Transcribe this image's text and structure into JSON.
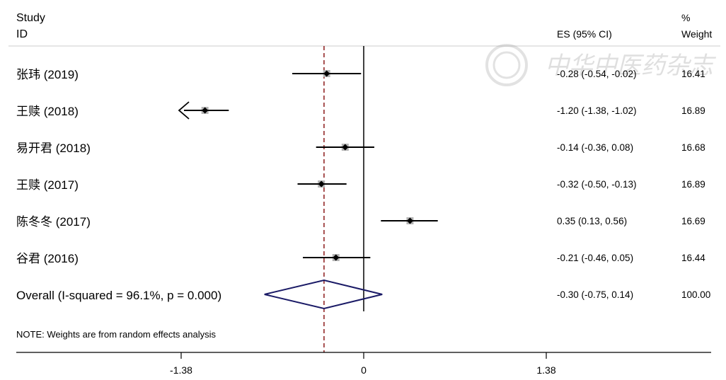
{
  "chart_data": {
    "type": "forest",
    "header": {
      "study_line1": "Study",
      "study_line2": "ID",
      "es_label": "ES (95% CI)",
      "weight_line1": "%",
      "weight_line2": "Weight"
    },
    "studies": [
      {
        "label": "张玮 (2019)",
        "es": -0.28,
        "lo": -0.54,
        "hi": -0.02,
        "es_text": "-0.28 (-0.54, -0.02)",
        "weight": 16.41,
        "weight_text": "16.41"
      },
      {
        "label": "王赎 (2018)",
        "es": -1.2,
        "lo": -1.38,
        "hi": -1.02,
        "es_text": "-1.20 (-1.38, -1.02)",
        "weight": 16.89,
        "weight_text": "16.89",
        "truncated_low": true
      },
      {
        "label": "易开君 (2018)",
        "es": -0.14,
        "lo": -0.36,
        "hi": 0.08,
        "es_text": "-0.14 (-0.36, 0.08)",
        "weight": 16.68,
        "weight_text": "16.68"
      },
      {
        "label": "王赎 (2017)",
        "es": -0.32,
        "lo": -0.5,
        "hi": -0.13,
        "es_text": "-0.32 (-0.50, -0.13)",
        "weight": 16.89,
        "weight_text": "16.89"
      },
      {
        "label": "陈冬冬 (2017)",
        "es": 0.35,
        "lo": 0.13,
        "hi": 0.56,
        "es_text": "0.35 (0.13, 0.56)",
        "weight": 16.69,
        "weight_text": "16.69"
      },
      {
        "label": "谷君 (2016)",
        "es": -0.21,
        "lo": -0.46,
        "hi": 0.05,
        "es_text": "-0.21 (-0.46, 0.05)",
        "weight": 16.44,
        "weight_text": "16.44"
      }
    ],
    "overall": {
      "label": "Overall  (I-squared = 96.1%, p = 0.000)",
      "es": -0.3,
      "lo": -0.75,
      "hi": 0.14,
      "es_text": "-0.30 (-0.75, 0.14)",
      "weight_text": "100.00"
    },
    "note": "NOTE: Weights are from random effects analysis",
    "xaxis": {
      "ticks": [
        -1.38,
        0,
        1.38
      ],
      "tick_labels": [
        "-1.38",
        "0",
        "1.38"
      ],
      "range": [
        -2.75,
        2.83
      ]
    },
    "colors": {
      "ci_line": "#000000",
      "point": "#000000",
      "weight_box": "#b3b3b3",
      "overall_diamond": "#1a1a66",
      "overall_line": "#8b1a1a",
      "separator": "#cccccc"
    },
    "watermark": "中华中医药杂志"
  }
}
